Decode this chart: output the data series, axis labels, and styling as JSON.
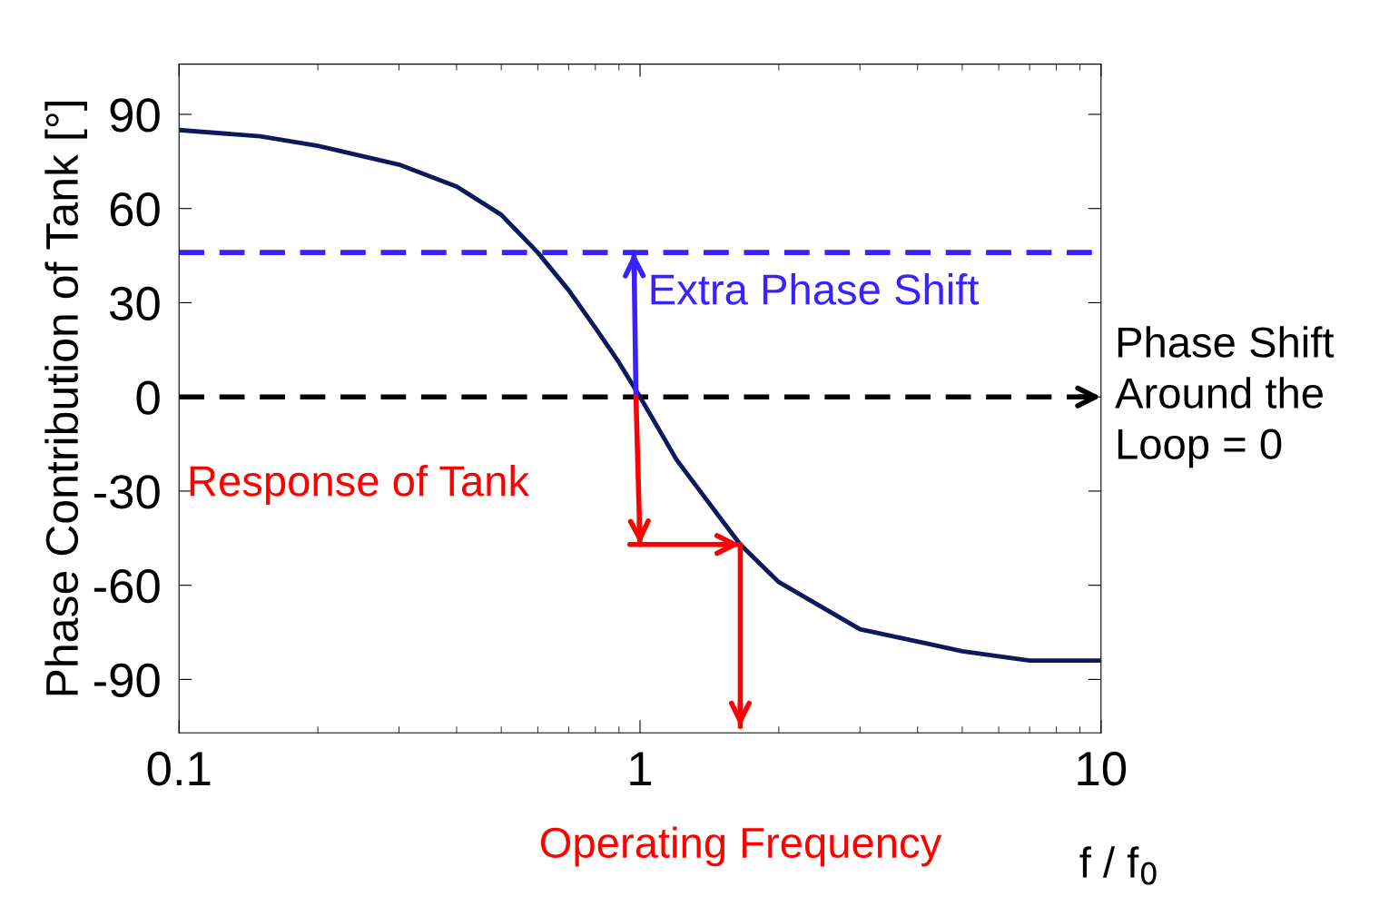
{
  "chart_data": {
    "type": "line",
    "ylabel": "Phase Contribution of Tank [°]",
    "xlabel": "f / f$_{0}$",
    "log": "x",
    "xlim": [
      0.1,
      10
    ],
    "ylim": [
      -107,
      106
    ],
    "xticks": [
      0.1,
      1,
      10
    ],
    "yticks": [
      -90,
      -60,
      -30,
      0,
      30,
      60,
      90
    ],
    "grid": false,
    "legend": false,
    "series": [
      {
        "color": "#0c1a5c",
        "x": [
          0.1,
          0.15,
          0.2,
          0.3,
          0.4,
          0.5,
          0.6,
          0.7,
          0.8,
          0.9,
          1,
          1.2,
          1.5,
          1.65,
          2,
          3,
          5,
          7,
          10
        ],
        "values": [
          85,
          83,
          80,
          74,
          67,
          58,
          46,
          34,
          22,
          11,
          0,
          -20,
          -39,
          -47,
          -59,
          -74,
          -81,
          -84,
          -84
        ]
      },
      {
        "type": "line",
        "color": "#3a22ff",
        "x": [
          0.98,
          0.97
        ],
        "values": [
          0,
          46
        ]
      },
      {
        "type": "line",
        "color": "#ff0000",
        "x": [
          0.98,
          1.0
        ],
        "values": [
          0,
          -47
        ]
      },
      {
        "type": "line",
        "color": "#ff0000",
        "x": [
          0.95,
          1.65
        ],
        "values": [
          -47,
          -47
        ]
      },
      {
        "type": "line",
        "color": "#ff0000",
        "x": [
          1.65,
          1.65
        ],
        "values": [
          -47,
          -105
        ]
      }
    ],
    "ref_lines": [
      {
        "axis": "y",
        "value": 46,
        "color": "#3a22ff",
        "line_style": "dashed"
      },
      {
        "axis": "y",
        "value": 0,
        "color": "#000000",
        "line_style": "dashed"
      }
    ],
    "annotations": [
      "Extra Phase Shift",
      "Response of Tank",
      "Operating Frequency",
      "Phase Shift\nAround the\nLoop = 0"
    ]
  }
}
